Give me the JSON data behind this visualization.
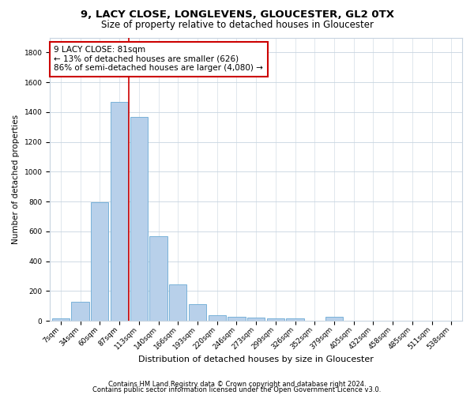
{
  "title1": "9, LACY CLOSE, LONGLEVENS, GLOUCESTER, GL2 0TX",
  "title2": "Size of property relative to detached houses in Gloucester",
  "xlabel": "Distribution of detached houses by size in Gloucester",
  "ylabel": "Number of detached properties",
  "categories": [
    "7sqm",
    "34sqm",
    "60sqm",
    "87sqm",
    "113sqm",
    "140sqm",
    "166sqm",
    "193sqm",
    "220sqm",
    "246sqm",
    "273sqm",
    "299sqm",
    "326sqm",
    "352sqm",
    "379sqm",
    "405sqm",
    "432sqm",
    "458sqm",
    "485sqm",
    "511sqm",
    "538sqm"
  ],
  "values": [
    15,
    130,
    795,
    1470,
    1365,
    570,
    245,
    110,
    38,
    28,
    22,
    18,
    15,
    0,
    25,
    0,
    0,
    0,
    0,
    0,
    0
  ],
  "bar_color": "#b8d0ea",
  "bar_edge_color": "#6aaad4",
  "vline_x_index": 3.5,
  "vline_color": "#cc0000",
  "annotation_line1": "9 LACY CLOSE: 81sqm",
  "annotation_line2": "← 13% of detached houses are smaller (626)",
  "annotation_line3": "86% of semi-detached houses are larger (4,080) →",
  "annotation_box_color": "#ffffff",
  "annotation_box_edge_color": "#cc0000",
  "ylim": [
    0,
    1900
  ],
  "yticks": [
    0,
    200,
    400,
    600,
    800,
    1000,
    1200,
    1400,
    1600,
    1800
  ],
  "bg_color": "#ffffff",
  "grid_color": "#c8d4e0",
  "footer1": "Contains HM Land Registry data © Crown copyright and database right 2024.",
  "footer2": "Contains public sector information licensed under the Open Government Licence v3.0.",
  "title1_fontsize": 9.5,
  "title2_fontsize": 8.5,
  "xlabel_fontsize": 8,
  "ylabel_fontsize": 7.5,
  "tick_fontsize": 6.5,
  "annotation_fontsize": 7.5,
  "footer_fontsize": 6
}
